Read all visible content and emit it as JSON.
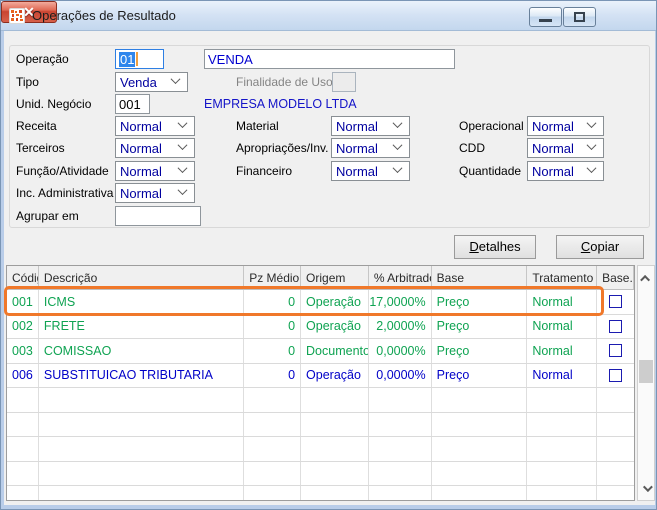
{
  "window": {
    "title": "Operações de Resultado"
  },
  "form": {
    "operacao": {
      "label": "Operação",
      "code": "01",
      "description": "VENDA"
    },
    "tipo": {
      "label": "Tipo",
      "value": "Venda"
    },
    "finalidade": {
      "label": "Finalidade de Uso",
      "value": ""
    },
    "unid_negocio": {
      "label": "Unid. Negócio",
      "value": "001",
      "company": "EMPRESA MODELO LTDA"
    },
    "receita": {
      "label": "Receita",
      "value": "Normal"
    },
    "terceiros": {
      "label": "Terceiros",
      "value": "Normal"
    },
    "funcao_atividade": {
      "label": "Função/Atividade",
      "value": "Normal"
    },
    "inc_administrativa": {
      "label": "Inc. Administrativa",
      "value": "Normal"
    },
    "agrupar_em": {
      "label": "Agrupar em",
      "value": ""
    },
    "material": {
      "label": "Material",
      "value": "Normal"
    },
    "apropriacoes": {
      "label": "Apropriações/Inv.",
      "value": "Normal"
    },
    "financeiro": {
      "label": "Financeiro",
      "value": "Normal"
    },
    "operacional": {
      "label": "Operacional",
      "value": "Normal"
    },
    "cdd": {
      "label": "CDD",
      "value": "Normal"
    },
    "quantidade": {
      "label": "Quantidade",
      "value": "Normal"
    }
  },
  "buttons": {
    "detalhes": "Detalhes",
    "copiar": "Copiar"
  },
  "table": {
    "headers": [
      "Código",
      "Descrição",
      "Pz Médio",
      "Origem",
      "% Arbitrado",
      "Base",
      "Tratamento",
      "Base..."
    ],
    "rows": [
      {
        "codigo": "001",
        "descricao": "ICMS",
        "pz_medio": "0",
        "origem": "Operação",
        "arbitrado": "17,0000%",
        "base": "Preço",
        "tratamento": "Normal",
        "checked": false,
        "color": "green",
        "highlighted": true
      },
      {
        "codigo": "002",
        "descricao": "FRETE",
        "pz_medio": "0",
        "origem": "Operação",
        "arbitrado": "2,0000%",
        "base": "Preço",
        "tratamento": "Normal",
        "checked": false,
        "color": "green",
        "highlighted": false
      },
      {
        "codigo": "003",
        "descricao": "COMISSAO",
        "pz_medio": "0",
        "origem": "Documento",
        "arbitrado": "0,0000%",
        "base": "Preço",
        "tratamento": "Normal",
        "checked": false,
        "color": "green",
        "highlighted": false
      },
      {
        "codigo": "006",
        "descricao": "SUBSTITUICAO TRIBUTARIA",
        "pz_medio": "0",
        "origem": "Operação",
        "arbitrado": "0,0000%",
        "base": "Preço",
        "tratamento": "Normal",
        "checked": false,
        "color": "blue",
        "highlighted": false
      }
    ],
    "empty_rows": 5
  },
  "colors": {
    "green": "#0fa352",
    "blue": "#0000c8",
    "highlight": "#f0782a",
    "titlebar": "#d4e2f4"
  }
}
